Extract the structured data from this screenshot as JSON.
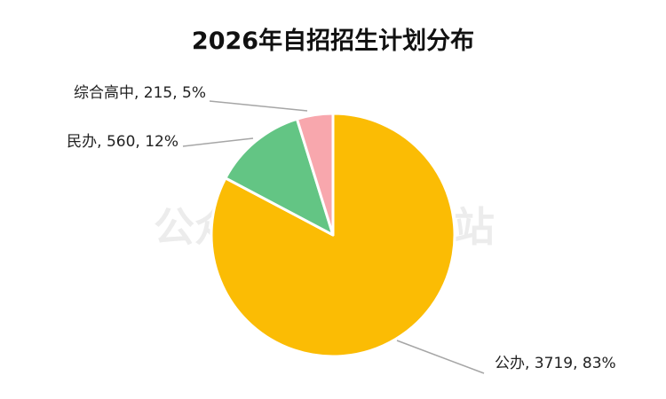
{
  "chart_data": {
    "type": "pie",
    "title": "2026年自招招生计划分布",
    "watermark": "公众号 青岛学情站",
    "slices": [
      {
        "name": "公办",
        "value": 3719,
        "percent": "83%",
        "color": "#FBBC04"
      },
      {
        "name": "民办",
        "value": 560,
        "percent": "12%",
        "color": "#63C584"
      },
      {
        "name": "综合高中",
        "value": 215,
        "percent": "5%",
        "color": "#F8A7AD"
      }
    ],
    "labels": [
      "公办, 3719, 83%",
      "民办, 560, 12%",
      "综合高中, 215, 5%"
    ],
    "legend": "none",
    "start_position": "top",
    "direction": "clockwise"
  }
}
